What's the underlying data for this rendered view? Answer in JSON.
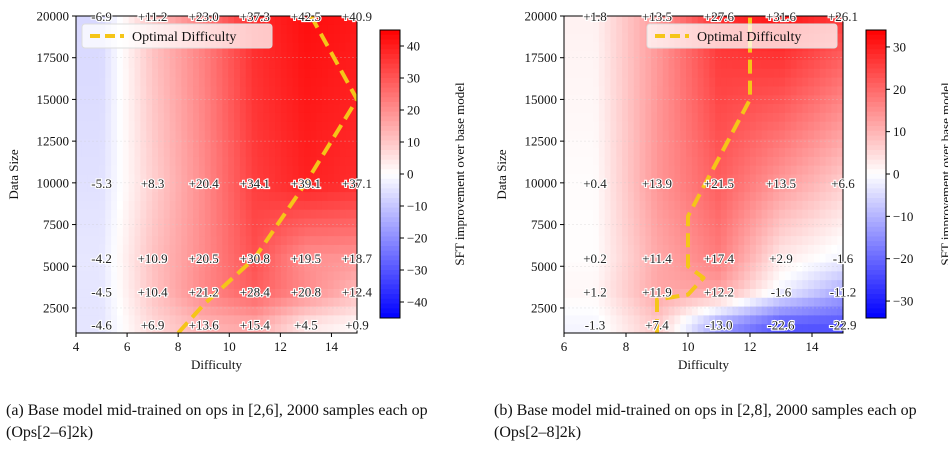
{
  "chart_data": [
    {
      "type": "heatmap",
      "xlabel": "Difficulty",
      "ylabel": "Data Size",
      "colorbar_label": "SFT improvement over base model",
      "xlim": [
        4,
        15
      ],
      "ylim": [
        1000,
        20000
      ],
      "x_ticks": [
        4,
        6,
        8,
        10,
        12,
        14
      ],
      "y_ticks": [
        2500,
        5000,
        7500,
        10000,
        12500,
        15000,
        17500,
        20000
      ],
      "clim": [
        -45,
        45
      ],
      "colorbar_ticks": [
        -40,
        -30,
        -20,
        -10,
        0,
        10,
        20,
        30,
        40
      ],
      "colorbar_ticklabels": [
        "−40",
        "−30",
        "−20",
        "−10",
        "0",
        "10",
        "20",
        "30",
        "40"
      ],
      "x": [
        5,
        7,
        9,
        11,
        13,
        15
      ],
      "y": [
        1500,
        3500,
        5500,
        10000,
        20000
      ],
      "values": [
        [
          -4.6,
          6.9,
          13.6,
          15.4,
          4.5,
          0.9
        ],
        [
          -4.5,
          10.4,
          21.2,
          28.4,
          20.8,
          12.4
        ],
        [
          -4.2,
          10.9,
          20.5,
          30.8,
          19.5,
          18.7
        ],
        [
          -5.3,
          8.3,
          20.4,
          34.1,
          39.1,
          37.1
        ],
        [
          -6.9,
          11.2,
          23.0,
          37.3,
          42.5,
          40.9
        ]
      ],
      "cell_labels": [
        [
          "-4.6",
          "+6.9",
          "+13.6",
          "+15.4",
          "+4.5",
          "+0.9"
        ],
        [
          "-4.5",
          "+10.4",
          "+21.2",
          "+28.4",
          "+20.8",
          "+12.4"
        ],
        [
          "-4.2",
          "+10.9",
          "+20.5",
          "+30.8",
          "+19.5",
          "+18.7"
        ],
        [
          "-5.3",
          "+8.3",
          "+20.4",
          "+34.1",
          "+39.1",
          "+37.1"
        ],
        [
          "-6.9",
          "+11.2",
          "+23.0",
          "+37.3",
          "+42.5",
          "+40.9"
        ]
      ],
      "optimal_curve": {
        "name": "Optimal Difficulty",
        "x": [
          8,
          9,
          11,
          13,
          15,
          13.2
        ],
        "y": [
          1000,
          2700,
          5500,
          10000,
          15000,
          20000
        ]
      },
      "legend_position": "upper-left",
      "colors": {
        "optimal": "#f5c518",
        "positive": "#ff0000",
        "negative": "#0000ff"
      }
    },
    {
      "type": "heatmap",
      "xlabel": "Difficulty",
      "ylabel": "Data Size",
      "colorbar_label": "SFT improvement over base model",
      "xlim": [
        6,
        15
      ],
      "ylim": [
        1000,
        20000
      ],
      "x_ticks": [
        6,
        8,
        10,
        12,
        14
      ],
      "y_ticks": [
        2500,
        5000,
        7500,
        10000,
        12500,
        15000,
        17500,
        20000
      ],
      "clim": [
        -34,
        34
      ],
      "colorbar_ticks": [
        -30,
        -20,
        -10,
        0,
        10,
        20,
        30
      ],
      "colorbar_ticklabels": [
        "−30",
        "−20",
        "−10",
        "0",
        "10",
        "20",
        "30"
      ],
      "x": [
        7,
        9,
        11,
        13,
        15
      ],
      "y": [
        1500,
        3500,
        5500,
        10000,
        20000
      ],
      "values": [
        [
          -1.3,
          7.4,
          -13.0,
          -22.6,
          -22.9
        ],
        [
          1.2,
          11.9,
          12.2,
          -1.6,
          -11.2
        ],
        [
          0.2,
          11.4,
          17.4,
          2.9,
          -1.6
        ],
        [
          0.4,
          13.9,
          21.5,
          13.5,
          6.6
        ],
        [
          1.8,
          13.5,
          27.6,
          31.6,
          26.1
        ]
      ],
      "cell_labels": [
        [
          "-1.3",
          "+7.4",
          "-13.0",
          "-22.6",
          "-22.9"
        ],
        [
          "+1.2",
          "+11.9",
          "+12.2",
          "-1.6",
          "-11.2"
        ],
        [
          "+0.2",
          "+11.4",
          "+17.4",
          "+2.9",
          "-1.6"
        ],
        [
          "+0.4",
          "+13.9",
          "+21.5",
          "+13.5",
          "+6.6"
        ],
        [
          "+1.8",
          "+13.5",
          "+27.6",
          "+31.6",
          "+26.1"
        ]
      ],
      "optimal_curve": {
        "name": "Optimal Difficulty",
        "x": [
          9,
          9,
          10,
          10.5,
          10,
          10,
          12,
          12
        ],
        "y": [
          1000,
          3000,
          3300,
          4300,
          5000,
          8000,
          15000,
          20000
        ]
      },
      "legend_position": "upper-right",
      "colors": {
        "optimal": "#f5c518",
        "positive": "#ff0000",
        "negative": "#0000ff"
      }
    }
  ],
  "captions": {
    "a": "(a) Base model mid-trained on ops in [2,6], 2000 samples each op (Ops[2–6]2k)",
    "b": "(b) Base model mid-trained on ops in [2,8], 2000 samples each op (Ops[2–8]2k)"
  }
}
